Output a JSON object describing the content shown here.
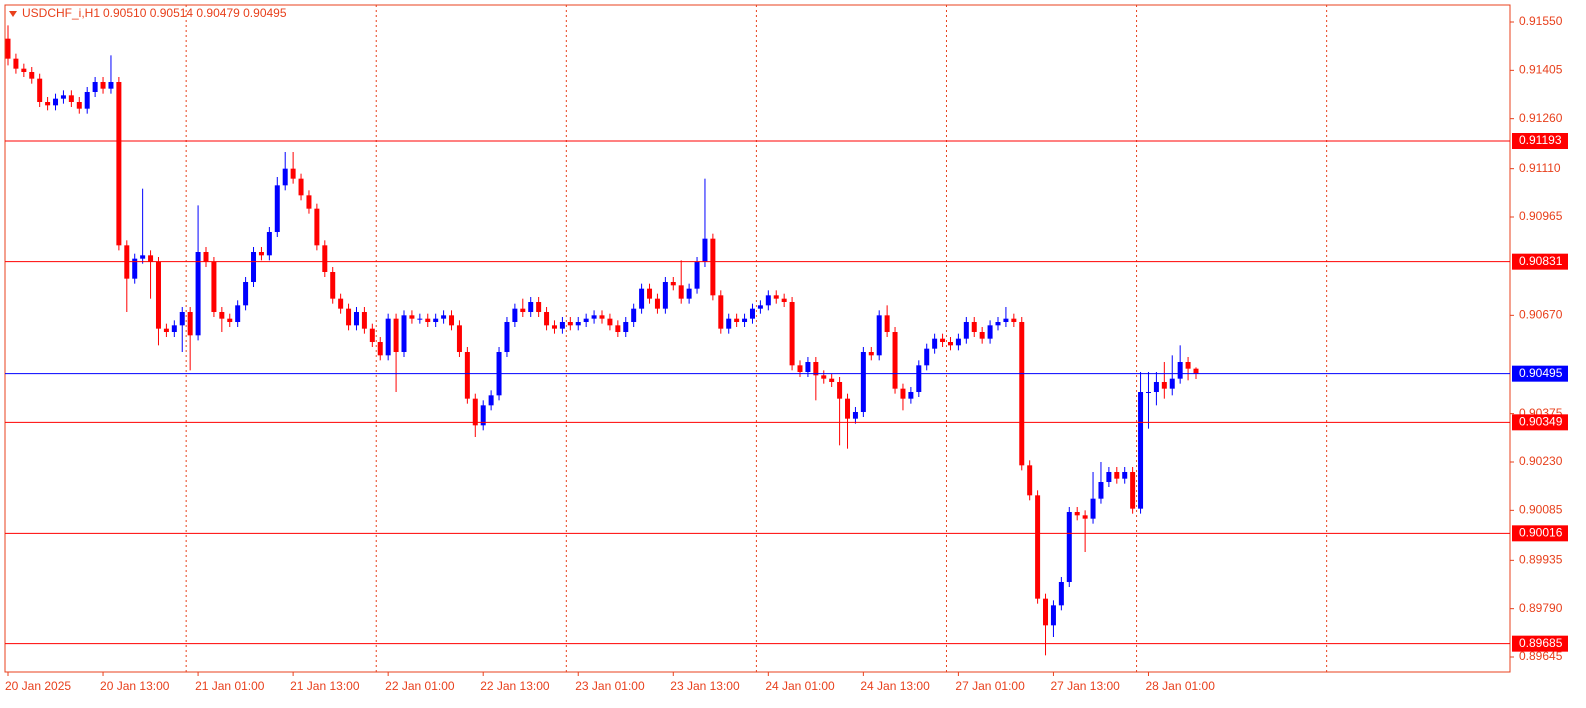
{
  "chart_data": {
    "type": "candlestick",
    "title": "USDCHF_i,H1",
    "ohlc_text": "0.90510 0.90514 0.90479 0.90495",
    "up_color": "#0000ff",
    "down_color": "#ff0000",
    "categories": [
      "20 Jan 2025",
      null,
      null,
      null,
      null,
      null,
      null,
      null,
      null,
      null,
      null,
      null,
      "20 Jan 13:00",
      null,
      null,
      null,
      null,
      null,
      null,
      null,
      null,
      null,
      null,
      null,
      "21 Jan 01:00",
      null,
      null,
      null,
      null,
      null,
      null,
      null,
      null,
      null,
      null,
      null,
      "21 Jan 13:00",
      null,
      null,
      null,
      null,
      null,
      null,
      null,
      null,
      null,
      null,
      null,
      "22 Jan 01:00",
      null,
      null,
      null,
      null,
      null,
      null,
      null,
      null,
      null,
      null,
      null,
      "22 Jan 13:00",
      null,
      null,
      null,
      null,
      null,
      null,
      null,
      null,
      null,
      null,
      null,
      "23 Jan 01:00",
      null,
      null,
      null,
      null,
      null,
      null,
      null,
      null,
      null,
      null,
      null,
      "23 Jan 13:00",
      null,
      null,
      null,
      null,
      null,
      null,
      null,
      null,
      null,
      null,
      null,
      "24 Jan 01:00",
      null,
      null,
      null,
      null,
      null,
      null,
      null,
      null,
      null,
      null,
      null,
      "24 Jan 13:00",
      null,
      null,
      null,
      null,
      null,
      null,
      null,
      null,
      null,
      null,
      null,
      "27 Jan 01:00",
      null,
      null,
      null,
      null,
      null,
      null,
      null,
      null,
      null,
      null,
      null,
      "27 Jan 13:00",
      null,
      null,
      null,
      null,
      null,
      null,
      null,
      null,
      null,
      null,
      null,
      "28 Jan 01:00",
      null,
      null,
      null,
      null,
      null,
      null
    ],
    "open": [
      0.915,
      0.9144,
      0.9141,
      0.914,
      0.9138,
      0.9131,
      0.913,
      0.9132,
      0.9133,
      0.9131,
      0.9129,
      0.9134,
      0.9137,
      0.9135,
      0.9137,
      0.9088,
      0.9078,
      0.9084,
      0.9085,
      0.9083,
      0.9063,
      0.9062,
      0.9064,
      0.9068,
      0.9061,
      0.9086,
      0.9083,
      0.9068,
      0.9066,
      0.9065,
      0.907,
      0.9077,
      0.9086,
      0.9085,
      0.9092,
      0.9106,
      0.9111,
      0.9108,
      0.9103,
      0.9099,
      0.9088,
      0.908,
      0.9072,
      0.9069,
      0.9064,
      0.9068,
      0.9063,
      0.9059,
      0.9055,
      0.9066,
      0.9056,
      0.9067,
      0.9066,
      0.9066,
      0.9065,
      0.9066,
      0.9067,
      0.9064,
      0.9056,
      0.9042,
      0.9034,
      0.904,
      0.9043,
      0.9056,
      0.9065,
      0.9069,
      0.9068,
      0.9071,
      0.9068,
      0.9064,
      0.9063,
      0.9065,
      0.9064,
      0.9065,
      0.9066,
      0.9067,
      0.9066,
      0.9064,
      0.9062,
      0.9065,
      0.9069,
      0.9075,
      0.9072,
      0.9069,
      0.9077,
      0.9076,
      0.9072,
      0.9075,
      0.9083,
      0.909,
      0.9073,
      0.9063,
      0.9066,
      0.9065,
      0.9066,
      0.9069,
      0.907,
      0.9073,
      0.9072,
      0.9071,
      0.9052,
      0.905,
      0.9053,
      0.9049,
      0.9048,
      0.9047,
      0.9042,
      0.9036,
      0.9038,
      0.9056,
      0.9055,
      0.9067,
      0.9062,
      0.9045,
      0.9042,
      0.9044,
      0.9052,
      0.9057,
      0.906,
      0.9059,
      0.9058,
      0.906,
      0.9065,
      0.9062,
      0.906,
      0.9064,
      0.9065,
      0.9066,
      0.9065,
      0.9022,
      0.9013,
      0.8982,
      0.8974,
      0.898,
      0.8987,
      0.9008,
      0.9007,
      0.9006,
      0.9012,
      0.9017,
      0.902,
      0.9018,
      0.902,
      0.9009,
      0.9044,
      0.9044,
      0.9047,
      0.9045,
      0.9048,
      0.9053,
      0.9051
    ],
    "high": [
      0.9154,
      0.91455,
      0.91425,
      0.91415,
      0.91395,
      0.91325,
      0.91335,
      0.91345,
      0.91345,
      0.91325,
      0.91355,
      0.91385,
      0.91385,
      0.9145,
      0.91385,
      0.90895,
      0.90855,
      0.9105,
      0.90865,
      0.90845,
      0.90645,
      0.90655,
      0.90695,
      0.90695,
      0.91,
      0.90875,
      0.90845,
      0.90695,
      0.90675,
      0.90715,
      0.90785,
      0.90875,
      0.90875,
      0.90935,
      0.91085,
      0.9116,
      0.9116,
      0.91095,
      0.91045,
      0.91005,
      0.90895,
      0.90815,
      0.90735,
      0.90705,
      0.90695,
      0.90695,
      0.90645,
      0.90605,
      0.90675,
      0.90675,
      0.90685,
      0.90685,
      0.90675,
      0.90675,
      0.90675,
      0.90685,
      0.90685,
      0.90655,
      0.90575,
      0.90435,
      0.90415,
      0.90445,
      0.90575,
      0.90665,
      0.90705,
      0.9072,
      0.90725,
      0.90725,
      0.90695,
      0.90655,
      0.90665,
      0.90665,
      0.90665,
      0.90675,
      0.90685,
      0.90685,
      0.90675,
      0.90655,
      0.90665,
      0.90705,
      0.90765,
      0.90765,
      0.90735,
      0.90785,
      0.90785,
      0.90835,
      0.90765,
      0.90845,
      0.9108,
      0.90915,
      0.90745,
      0.90675,
      0.90675,
      0.90675,
      0.90705,
      0.90715,
      0.90745,
      0.90745,
      0.90735,
      0.90725,
      0.90535,
      0.90545,
      0.90545,
      0.90505,
      0.90495,
      0.90485,
      0.90435,
      0.90395,
      0.90575,
      0.90575,
      0.90685,
      0.907,
      0.90635,
      0.90465,
      0.90455,
      0.90535,
      0.90585,
      0.90615,
      0.90615,
      0.90605,
      0.90615,
      0.90665,
      0.90665,
      0.90635,
      0.90655,
      0.90665,
      0.90695,
      0.90675,
      0.90665,
      0.90235,
      0.90145,
      0.89835,
      0.89815,
      0.89885,
      0.90095,
      0.90095,
      0.90085,
      0.902,
      0.9023,
      0.90215,
      0.90215,
      0.90215,
      0.90215,
      0.905,
      0.905,
      0.905,
      0.9053,
      0.9055,
      0.9058,
      0.90545,
      0.90514
    ],
    "low": [
      0.9142,
      0.91395,
      0.91385,
      0.91365,
      0.91295,
      0.91285,
      0.91285,
      0.91305,
      0.91295,
      0.91275,
      0.91275,
      0.91325,
      0.91335,
      0.91335,
      0.90865,
      0.9068,
      0.90765,
      0.90825,
      0.9072,
      0.9058,
      0.90605,
      0.90605,
      0.9056,
      0.90505,
      0.90595,
      0.90815,
      0.90665,
      0.9062,
      0.90635,
      0.90635,
      0.90685,
      0.90755,
      0.90835,
      0.90835,
      0.90905,
      0.91045,
      0.91065,
      0.91015,
      0.90975,
      0.90865,
      0.90785,
      0.90705,
      0.90675,
      0.90625,
      0.90625,
      0.90615,
      0.90575,
      0.90535,
      0.90535,
      0.9044,
      0.90545,
      0.90645,
      0.90645,
      0.90635,
      0.90635,
      0.90645,
      0.90625,
      0.90545,
      0.90405,
      0.90305,
      0.90325,
      0.90385,
      0.90415,
      0.90545,
      0.90635,
      0.90665,
      0.90665,
      0.90665,
      0.90625,
      0.90615,
      0.90615,
      0.90625,
      0.90625,
      0.90635,
      0.90645,
      0.90645,
      0.90625,
      0.90605,
      0.90605,
      0.90635,
      0.90675,
      0.90705,
      0.90675,
      0.90675,
      0.90745,
      0.90705,
      0.90705,
      0.90735,
      0.90815,
      0.90715,
      0.90615,
      0.90615,
      0.90635,
      0.90635,
      0.90645,
      0.90675,
      0.90685,
      0.90705,
      0.90695,
      0.90505,
      0.90485,
      0.90485,
      0.90415,
      0.90465,
      0.90455,
      0.9028,
      0.9027,
      0.90345,
      0.90365,
      0.90535,
      0.90535,
      0.90605,
      0.90435,
      0.90385,
      0.90405,
      0.90425,
      0.90505,
      0.90555,
      0.90575,
      0.90565,
      0.90565,
      0.90585,
      0.90605,
      0.90585,
      0.90585,
      0.90625,
      0.90635,
      0.90635,
      0.90205,
      0.90115,
      0.89805,
      0.8965,
      0.89705,
      0.89785,
      0.89855,
      0.90055,
      0.8996,
      0.90045,
      0.90105,
      0.90155,
      0.90165,
      0.90165,
      0.90075,
      0.90075,
      0.9033,
      0.904,
      0.9042,
      0.9043,
      0.90465,
      0.90475,
      0.90479
    ],
    "close": [
      0.9144,
      0.9141,
      0.914,
      0.9138,
      0.9131,
      0.913,
      0.9132,
      0.9133,
      0.9131,
      0.9129,
      0.9134,
      0.9137,
      0.9135,
      0.9137,
      0.9088,
      0.9078,
      0.9084,
      0.9085,
      0.9083,
      0.9063,
      0.9062,
      0.9064,
      0.9068,
      0.9061,
      0.9086,
      0.9083,
      0.9068,
      0.9066,
      0.9065,
      0.907,
      0.9077,
      0.9086,
      0.9085,
      0.9092,
      0.9106,
      0.9111,
      0.9108,
      0.9103,
      0.9099,
      0.9088,
      0.908,
      0.9072,
      0.9069,
      0.9064,
      0.9068,
      0.9063,
      0.9059,
      0.9055,
      0.9066,
      0.9056,
      0.9067,
      0.9066,
      0.9066,
      0.9065,
      0.9066,
      0.9067,
      0.9064,
      0.9056,
      0.9042,
      0.9034,
      0.904,
      0.9043,
      0.9056,
      0.9065,
      0.9069,
      0.9068,
      0.9071,
      0.9068,
      0.9064,
      0.9063,
      0.9065,
      0.9064,
      0.9065,
      0.9066,
      0.9067,
      0.9066,
      0.9064,
      0.9062,
      0.9065,
      0.9069,
      0.9075,
      0.9072,
      0.9069,
      0.9077,
      0.9076,
      0.9072,
      0.9075,
      0.9083,
      0.909,
      0.9073,
      0.9063,
      0.9066,
      0.9065,
      0.9066,
      0.9069,
      0.907,
      0.9073,
      0.9072,
      0.9071,
      0.9052,
      0.905,
      0.9053,
      0.9049,
      0.9048,
      0.9047,
      0.9042,
      0.9036,
      0.9038,
      0.9056,
      0.9055,
      0.9067,
      0.9062,
      0.9045,
      0.9042,
      0.9044,
      0.9052,
      0.9057,
      0.906,
      0.9059,
      0.9058,
      0.906,
      0.9065,
      0.9062,
      0.906,
      0.9064,
      0.9065,
      0.9066,
      0.9065,
      0.9022,
      0.9013,
      0.8982,
      0.8974,
      0.898,
      0.8987,
      0.9008,
      0.9007,
      0.9006,
      0.9012,
      0.9017,
      0.902,
      0.9018,
      0.902,
      0.9009,
      0.9044,
      0.9044,
      0.9047,
      0.9045,
      0.9048,
      0.9053,
      0.9051,
      0.90495
    ],
    "ylim": [
      0.896,
      0.91601
    ],
    "yticks": [
      {
        "value": 0.9155,
        "label": "0.91550"
      },
      0.91405,
      {
        "value": 0.9126,
        "label": "0.91260"
      },
      {
        "value": 0.9111,
        "label": "0.91110"
      },
      0.90965,
      {
        "value": 0.9067,
        "label": "0.90670"
      },
      0.90375,
      {
        "value": 0.9023,
        "label": "0.90230"
      },
      0.90085,
      0.89935,
      {
        "value": 0.8979,
        "label": "0.89790"
      },
      0.89645
    ],
    "levels": [
      {
        "value": 0.91193,
        "color": "#ff0000"
      },
      {
        "value": 0.90831,
        "color": "#ff0000"
      },
      {
        "value": 0.90349,
        "color": "#ff0000"
      },
      {
        "value": 0.90016,
        "color": "#ff0000"
      },
      {
        "value": 0.89685,
        "color": "#ff0000"
      },
      {
        "value": 0.90495,
        "color": "#0000ff"
      }
    ]
  }
}
